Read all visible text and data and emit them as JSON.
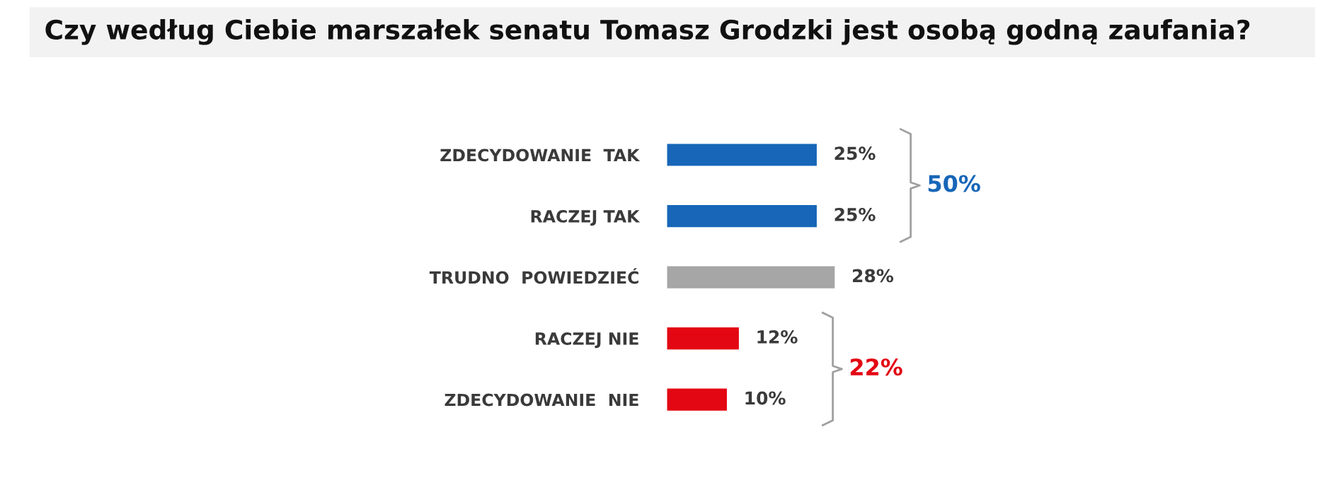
{
  "chart_data": {
    "type": "bar",
    "orientation": "horizontal",
    "title": "Czy według Ciebie marszałek senatu Tomasz Grodzki jest osobą godną zaufania?",
    "categories": [
      "ZDECYDOWANIE  TAK",
      "RACZEJ TAK",
      "TRUDNO  POWIEDZIEĆ",
      "RACZEJ NIE",
      "ZDECYDOWANIE  NIE"
    ],
    "values": [
      25,
      25,
      28,
      12,
      10
    ],
    "colors": [
      "#1766b8",
      "#1766b8",
      "#a6a6a6",
      "#e30613",
      "#e30613"
    ],
    "value_labels": [
      "25%",
      "25%",
      "28%",
      "12%",
      "10%"
    ],
    "annotations": [
      "50%",
      "22%"
    ],
    "grid": false,
    "legend": false
  }
}
